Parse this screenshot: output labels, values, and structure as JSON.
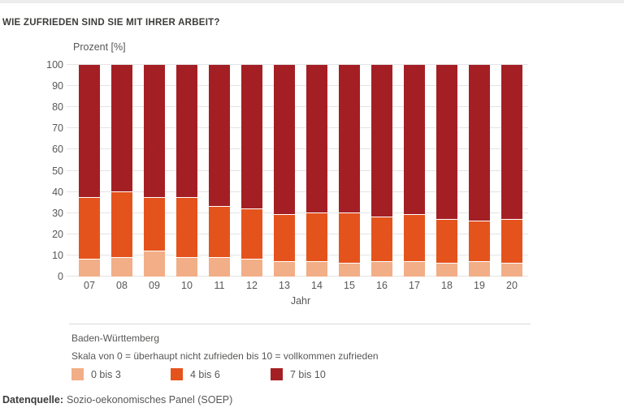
{
  "page": {
    "footer_label": "Datenquelle:",
    "footer_text": "Sozio-oekonomisches Panel (SOEP)"
  },
  "colors": {
    "top_strip": "#ededed",
    "grid": "#e4e4e4",
    "divider": "#d9d9d9",
    "text_dark": "#3c3c3b",
    "text_gray": "#575756"
  },
  "chart_data": {
    "type": "bar",
    "stacked": true,
    "title": "WIE ZUFRIEDEN SIND SIE MIT IHRER ARBEIT?",
    "ylabel": "Prozent [%]",
    "xlabel": "Jahr",
    "ylim": [
      0,
      100
    ],
    "yticks": [
      0,
      10,
      20,
      30,
      40,
      50,
      60,
      70,
      80,
      90,
      100
    ],
    "grid": true,
    "legend_position": "bottom",
    "region_note": "Baden-Württemberg",
    "scale_note": "Skala von 0 = überhaupt nicht zufrieden bis 10 = vollkommen zufrieden",
    "categories": [
      "07",
      "08",
      "09",
      "10",
      "11",
      "12",
      "13",
      "14",
      "15",
      "16",
      "17",
      "18",
      "19",
      "20"
    ],
    "series": [
      {
        "name": "0 bis 3",
        "color": "#f2ae87",
        "values": [
          8,
          9,
          12,
          9,
          9,
          8,
          7,
          7,
          6,
          7,
          7,
          6,
          7,
          6
        ]
      },
      {
        "name": "4 bis 6",
        "color": "#e5531c",
        "values": [
          29,
          31,
          25,
          28,
          24,
          24,
          22,
          23,
          24,
          21,
          22,
          21,
          19,
          21
        ]
      },
      {
        "name": "7 bis 10",
        "color": "#a41f24",
        "values": [
          63,
          60,
          63,
          63,
          67,
          68,
          71,
          70,
          70,
          72,
          71,
          73,
          74,
          73
        ]
      }
    ]
  }
}
